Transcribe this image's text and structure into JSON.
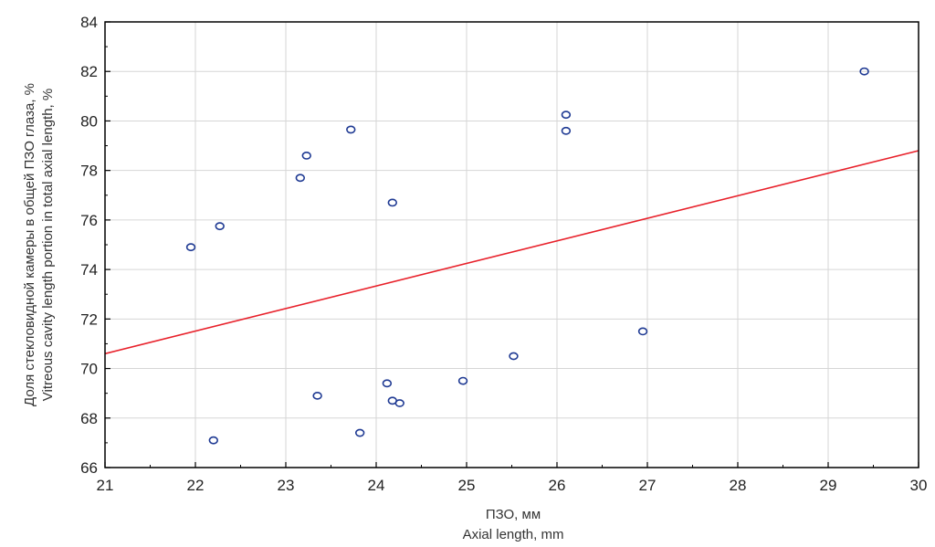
{
  "chart_data": {
    "type": "scatter",
    "xlabel_lines": [
      "ПЗО, мм",
      "Axial length, mm"
    ],
    "ylabel_lines": [
      "Доля стекловидной камеры в общей ПЗО глаза, %",
      "Vitreous cavity length portion in total axial length, %"
    ],
    "xlim": [
      21,
      30
    ],
    "ylim": [
      66,
      84
    ],
    "x_ticks": [
      21,
      22,
      23,
      24,
      25,
      26,
      27,
      28,
      29,
      30
    ],
    "y_ticks": [
      66,
      68,
      70,
      72,
      74,
      76,
      78,
      80,
      82,
      84
    ],
    "grid": true,
    "points": [
      {
        "x": 21.95,
        "y": 74.9
      },
      {
        "x": 22.27,
        "y": 75.75
      },
      {
        "x": 22.2,
        "y": 67.1
      },
      {
        "x": 23.16,
        "y": 77.7
      },
      {
        "x": 23.23,
        "y": 78.6
      },
      {
        "x": 23.35,
        "y": 68.9
      },
      {
        "x": 23.72,
        "y": 79.65
      },
      {
        "x": 23.82,
        "y": 67.4
      },
      {
        "x": 24.12,
        "y": 69.4
      },
      {
        "x": 24.18,
        "y": 76.7
      },
      {
        "x": 24.18,
        "y": 68.7
      },
      {
        "x": 24.26,
        "y": 68.6
      },
      {
        "x": 24.96,
        "y": 69.5
      },
      {
        "x": 25.52,
        "y": 70.5
      },
      {
        "x": 26.1,
        "y": 80.25
      },
      {
        "x": 26.1,
        "y": 79.6
      },
      {
        "x": 26.95,
        "y": 71.5
      },
      {
        "x": 29.4,
        "y": 82.0
      }
    ],
    "fit_line": {
      "x": [
        21,
        30
      ],
      "y": [
        70.6,
        78.8
      ]
    },
    "colors": {
      "points": "#1f3a93",
      "fit_line": "#e8202a",
      "frame": "#000000",
      "grid": "#d6d6d6"
    }
  }
}
